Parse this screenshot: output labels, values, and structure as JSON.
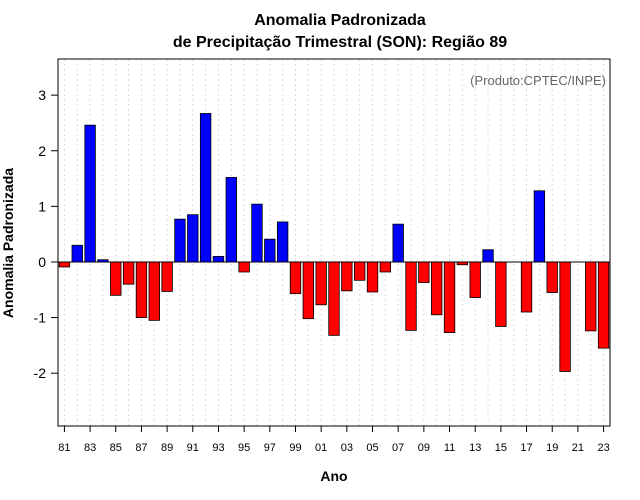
{
  "chart_data": {
    "type": "bar",
    "title_line1": "Anomalia Padronizada",
    "title_line2": "de Precipitação Trimestral (SON): Região 89",
    "xlabel": "Ano",
    "ylabel": "Anomalia Padronizada",
    "credit": "(Produto:CPTEC/INPE)",
    "ylim": [
      -2.95,
      3.65
    ],
    "yticks": [
      "-2",
      "-1",
      "0",
      "1",
      "2",
      "3"
    ],
    "ytick_values": [
      -2,
      -1,
      0,
      1,
      2,
      3
    ],
    "xtick_labels": [
      "81",
      "83",
      "85",
      "87",
      "89",
      "91",
      "93",
      "95",
      "97",
      "99",
      "01",
      "03",
      "05",
      "07",
      "09",
      "11",
      "13",
      "15",
      "17",
      "19",
      "21",
      "23"
    ],
    "categories": [
      "1981",
      "1982",
      "1983",
      "1984",
      "1985",
      "1986",
      "1987",
      "1988",
      "1989",
      "1990",
      "1991",
      "1992",
      "1993",
      "1994",
      "1995",
      "1996",
      "1997",
      "1998",
      "1999",
      "2000",
      "2001",
      "2002",
      "2003",
      "2004",
      "2005",
      "2006",
      "2007",
      "2008",
      "2009",
      "2010",
      "2011",
      "2012",
      "2013",
      "2014",
      "2015",
      "2016",
      "2017",
      "2018",
      "2019",
      "2020",
      "2021",
      "2022",
      "2023"
    ],
    "values": [
      -0.09,
      0.3,
      2.46,
      0.04,
      -0.6,
      -0.4,
      -1.0,
      -1.05,
      -0.53,
      0.77,
      0.85,
      2.67,
      0.1,
      1.52,
      -0.18,
      1.04,
      0.41,
      0.72,
      -0.57,
      -1.02,
      -0.77,
      -1.32,
      -0.52,
      -0.33,
      -0.54,
      -0.18,
      0.68,
      -1.23,
      -0.37,
      -0.95,
      -1.27,
      -0.05,
      -0.64,
      0.22,
      -1.16,
      null,
      -0.9,
      1.28,
      -0.55,
      -1.97,
      null,
      -1.24,
      -1.55
    ],
    "grid": "vertical-dotted",
    "colors": {
      "positive": "#0000ff",
      "negative": "#ff0000",
      "grid": "#d9d9d9",
      "zero_line": "#000000"
    }
  }
}
